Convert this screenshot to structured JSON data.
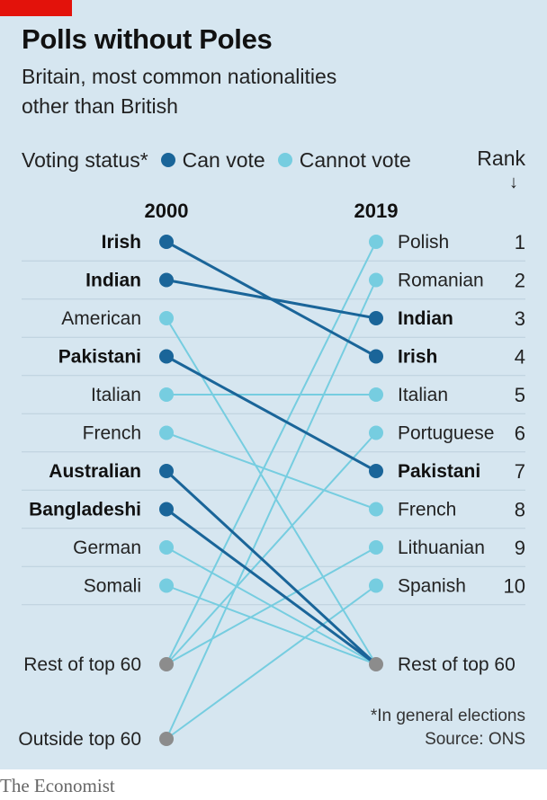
{
  "header": {
    "title": "Polls without Poles",
    "subtitle_line1": "Britain, most common nationalities",
    "subtitle_line2": "other than British"
  },
  "legend": {
    "prefix": "Voting status*",
    "can_vote": "Can vote",
    "cannot_vote": "Cannot vote",
    "rank": "Rank",
    "rank_arrow": "↓"
  },
  "colors": {
    "can_vote": "#1a6599",
    "cannot_vote": "#76cde0",
    "other": "#8c8c8c",
    "panel": "#d6e6f0",
    "brand_red": "#e3120b"
  },
  "chart_data": {
    "type": "slope",
    "left_year": "2000",
    "right_year": "2019",
    "left": [
      {
        "label": "Irish",
        "status": "can"
      },
      {
        "label": "Indian",
        "status": "can"
      },
      {
        "label": "American",
        "status": "cannot"
      },
      {
        "label": "Pakistani",
        "status": "can"
      },
      {
        "label": "Italian",
        "status": "cannot"
      },
      {
        "label": "French",
        "status": "cannot"
      },
      {
        "label": "Australian",
        "status": "can"
      },
      {
        "label": "Bangladeshi",
        "status": "can"
      },
      {
        "label": "German",
        "status": "cannot"
      },
      {
        "label": "Somali",
        "status": "cannot"
      },
      {
        "label": "Rest of top 60",
        "status": "other"
      },
      {
        "label": "Outside top 60",
        "status": "other"
      }
    ],
    "right": [
      {
        "label": "Polish",
        "status": "cannot",
        "rank": "1"
      },
      {
        "label": "Romanian",
        "status": "cannot",
        "rank": "2"
      },
      {
        "label": "Indian",
        "status": "can",
        "rank": "3"
      },
      {
        "label": "Irish",
        "status": "can",
        "rank": "4"
      },
      {
        "label": "Italian",
        "status": "cannot",
        "rank": "5"
      },
      {
        "label": "Portuguese",
        "status": "cannot",
        "rank": "6"
      },
      {
        "label": "Pakistani",
        "status": "can",
        "rank": "7"
      },
      {
        "label": "French",
        "status": "cannot",
        "rank": "8"
      },
      {
        "label": "Lithuanian",
        "status": "cannot",
        "rank": "9"
      },
      {
        "label": "Spanish",
        "status": "cannot",
        "rank": "10"
      },
      {
        "label": "Rest of top 60",
        "status": "other",
        "rank": ""
      }
    ],
    "links": [
      {
        "from": "Irish",
        "to": "Irish",
        "status": "can"
      },
      {
        "from": "Indian",
        "to": "Indian",
        "status": "can"
      },
      {
        "from": "Pakistani",
        "to": "Pakistani",
        "status": "can"
      },
      {
        "from": "Australian",
        "to": "Rest of top 60",
        "status": "can"
      },
      {
        "from": "Bangladeshi",
        "to": "Rest of top 60",
        "status": "can"
      },
      {
        "from": "American",
        "to": "Rest of top 60",
        "status": "cannot"
      },
      {
        "from": "Italian",
        "to": "Italian",
        "status": "cannot"
      },
      {
        "from": "French",
        "to": "French",
        "status": "cannot"
      },
      {
        "from": "German",
        "to": "Rest of top 60",
        "status": "cannot"
      },
      {
        "from": "Somali",
        "to": "Rest of top 60",
        "status": "cannot"
      },
      {
        "from": "Rest of top 60",
        "to": "Polish",
        "status": "cannot"
      },
      {
        "from": "Rest of top 60",
        "to": "Portuguese",
        "status": "cannot"
      },
      {
        "from": "Rest of top 60",
        "to": "Lithuanian",
        "status": "cannot"
      },
      {
        "from": "Outside top 60",
        "to": "Romanian",
        "status": "cannot"
      },
      {
        "from": "Outside top 60",
        "to": "Spanish",
        "status": "cannot"
      }
    ]
  },
  "footer": {
    "footnote": "*In general elections",
    "source": "Source: ONS",
    "brand": "The Economist"
  }
}
